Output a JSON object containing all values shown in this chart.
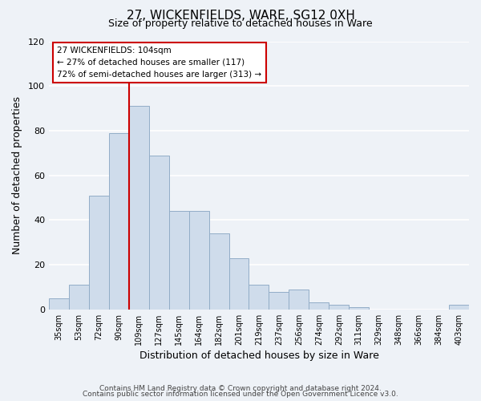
{
  "title": "27, WICKENFIELDS, WARE, SG12 0XH",
  "subtitle": "Size of property relative to detached houses in Ware",
  "xlabel": "Distribution of detached houses by size in Ware",
  "ylabel": "Number of detached properties",
  "bar_color": "#cfdceb",
  "bar_edge_color": "#92adc7",
  "bins": [
    "35sqm",
    "53sqm",
    "72sqm",
    "90sqm",
    "109sqm",
    "127sqm",
    "145sqm",
    "164sqm",
    "182sqm",
    "201sqm",
    "219sqm",
    "237sqm",
    "256sqm",
    "274sqm",
    "292sqm",
    "311sqm",
    "329sqm",
    "348sqm",
    "366sqm",
    "384sqm",
    "403sqm"
  ],
  "values": [
    5,
    11,
    51,
    79,
    91,
    69,
    44,
    44,
    34,
    23,
    11,
    8,
    9,
    3,
    2,
    1,
    0,
    0,
    0,
    0,
    2
  ],
  "red_line_bin_index": 4,
  "annotation_text": "27 WICKENFIELDS: 104sqm\n← 27% of detached houses are smaller (117)\n72% of semi-detached houses are larger (313) →",
  "annotation_box_color": "#ffffff",
  "annotation_box_edge_color": "#cc0000",
  "ylim": [
    0,
    120
  ],
  "yticks": [
    0,
    20,
    40,
    60,
    80,
    100,
    120
  ],
  "footer1": "Contains HM Land Registry data © Crown copyright and database right 2024.",
  "footer2": "Contains public sector information licensed under the Open Government Licence v3.0.",
  "background_color": "#eef2f7"
}
